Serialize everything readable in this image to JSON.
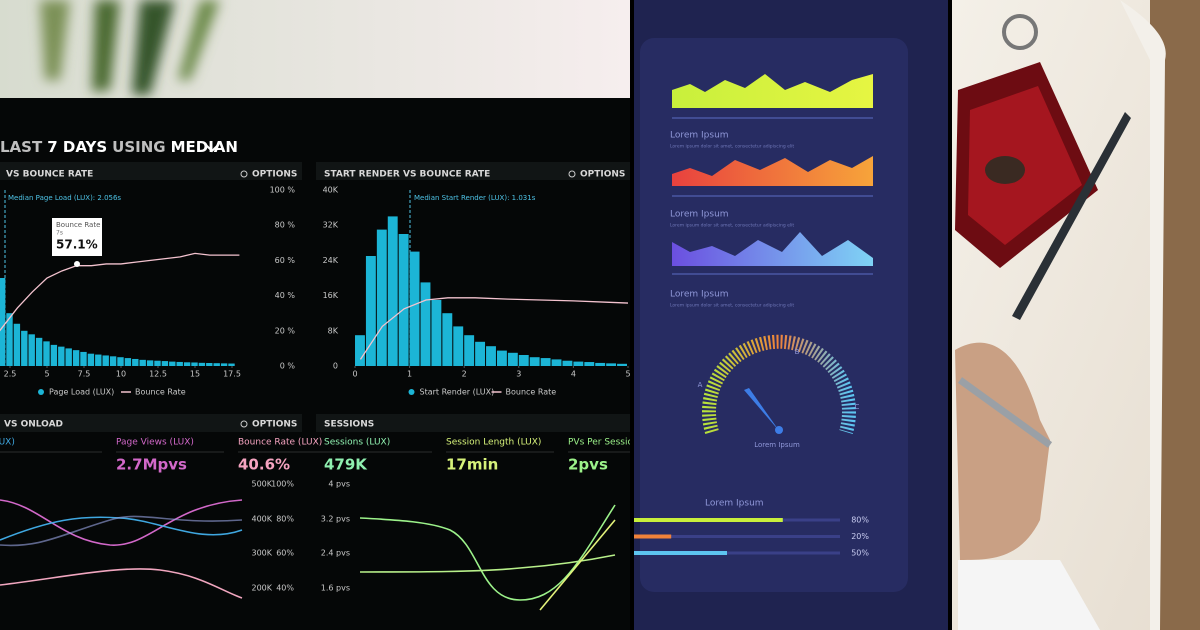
{
  "dashboard_photo": {
    "header": {
      "a": "LAST",
      "b": "7 DAYS",
      "c": "USING",
      "d": "MEDIAN"
    },
    "page_load": {
      "title": "VS BOUNCE RATE",
      "options": "OPTIONS",
      "median": "Median Page Load (LUX): 2.056s",
      "tooltip": {
        "label": "Bounce Rate",
        "sub": "7s",
        "value": "57.1%"
      },
      "xlim": [
        0,
        20
      ],
      "xticks": [
        2.5,
        5,
        7.5,
        10,
        12.5,
        15,
        17.5
      ],
      "ylim": [
        0,
        100
      ],
      "yticks": [
        {
          "value": 100,
          "label": "100 %"
        },
        {
          "value": 80,
          "label": "80 %"
        },
        {
          "value": 60,
          "label": "60 %"
        },
        {
          "value": 40,
          "label": "40 %"
        },
        {
          "value": 20,
          "label": "20 %"
        },
        {
          "value": 0,
          "label": "0 %"
        }
      ],
      "bars": {
        "x": [
          2,
          2.5,
          3,
          3.5,
          4,
          4.5,
          5,
          5.5,
          6,
          6.5,
          7,
          7.5,
          8,
          8.5,
          9,
          9.5,
          10,
          10.5,
          11,
          11.5,
          12,
          12.5,
          13,
          13.5,
          14,
          14.5,
          15,
          15.5,
          16,
          16.5,
          17,
          17.5
        ],
        "values": [
          50,
          30,
          24,
          20,
          18,
          16,
          14,
          12,
          11,
          10,
          9,
          8,
          7,
          6.5,
          6,
          5.5,
          5,
          4.5,
          4,
          3.5,
          3.2,
          3,
          2.8,
          2.5,
          2.3,
          2.1,
          2,
          1.8,
          1.7,
          1.6,
          1.5,
          1.4
        ]
      },
      "line": {
        "x": [
          1.8,
          3,
          4,
          5,
          6,
          7,
          8,
          9,
          10,
          11,
          12,
          13,
          14,
          15,
          16,
          17,
          18
        ],
        "values": [
          20,
          33,
          42,
          50,
          54,
          57,
          57,
          58,
          58,
          59,
          60,
          61,
          62,
          64,
          63,
          63,
          63
        ]
      },
      "legend": [
        "Page Load (LUX)",
        "Bounce Rate"
      ]
    },
    "start_render": {
      "title": "START RENDER VS BOUNCE RATE",
      "options": "OPTIONS",
      "median": "Median Start Render (LUX): 1.031s",
      "xlim": [
        0,
        5
      ],
      "xticks": [
        0,
        1,
        2,
        3,
        4,
        5
      ],
      "ylim": [
        0,
        40000
      ],
      "yticks": [
        {
          "value": 40000,
          "label": "40K"
        },
        {
          "value": 32000,
          "label": "32K"
        },
        {
          "value": 24000,
          "label": "24K"
        },
        {
          "value": 16000,
          "label": "16K"
        },
        {
          "value": 8000,
          "label": "8K"
        },
        0
      ],
      "bars": {
        "x": [
          0.1,
          0.3,
          0.5,
          0.7,
          0.9,
          1.1,
          1.3,
          1.5,
          1.7,
          1.9,
          2.1,
          2.3,
          2.5,
          2.7,
          2.9,
          3.1,
          3.3,
          3.5,
          3.7,
          3.9,
          4.1,
          4.3,
          4.5,
          4.7,
          4.9
        ],
        "values": [
          7000,
          25000,
          31000,
          34000,
          30000,
          26000,
          19000,
          15000,
          12000,
          9000,
          7000,
          5500,
          4500,
          3500,
          3000,
          2500,
          2000,
          1800,
          1500,
          1200,
          1000,
          900,
          700,
          600,
          500
        ]
      },
      "line": {
        "x": [
          0.1,
          0.5,
          0.9,
          1.3,
          1.7,
          2.2,
          2.8,
          3.4,
          4,
          4.6,
          5
        ],
        "values": [
          1500,
          9000,
          13000,
          15000,
          15500,
          15500,
          15200,
          15000,
          14800,
          14500,
          14300
        ]
      },
      "legend": [
        "Start Render (LUX)",
        "Bounce Rate"
      ]
    },
    "onload": {
      "title": "VS ONLOAD",
      "options": "OPTIONS",
      "metrics": [
        {
          "label": "LUX)"
        },
        {
          "label": "Page Views (LUX)",
          "value": "2.7Mpvs"
        },
        {
          "label": "Bounce Rate (LUX)",
          "value": "40.6%"
        }
      ],
      "left_axis": [
        "500K",
        "400K",
        "300K",
        "200K"
      ],
      "right_axis": [
        "100%",
        "80%",
        "60%",
        "40%"
      ]
    },
    "sessions": {
      "title": "SESSIONS",
      "metrics": [
        {
          "label": "Sessions (LUX)",
          "value": "479K"
        },
        {
          "label": "Session Length (LUX)",
          "value": "17min"
        },
        {
          "label": "PVs Per Sessio",
          "value": "2pvs"
        }
      ],
      "axis": [
        "4 pvs",
        "3.2 pvs",
        "2.4 pvs",
        "1.6 pvs"
      ]
    }
  },
  "infographic": {
    "charts": [
      {
        "title": "Lorem Ipsum",
        "text": "Lorem ipsum dolor sit amet, consectetur adipiscing elit"
      },
      {
        "title": "Lorem Ipsum",
        "text": "Lorem ipsum dolor sit amet, consectetur adipiscing elit"
      },
      {
        "title": "Lorem Ipsum",
        "text": "Lorem ipsum dolor sit amet, consectetur adipiscing elit"
      }
    ],
    "gauge": {
      "labels": [
        "A",
        "B",
        "C"
      ],
      "caption": "Lorem Ipsum"
    },
    "progress": {
      "title": "Lorem Ipsum",
      "bars": [
        {
          "value": 80,
          "label": "80%"
        },
        {
          "value": 20,
          "label": "20%"
        },
        {
          "value": 50,
          "label": "50%"
        }
      ]
    }
  }
}
